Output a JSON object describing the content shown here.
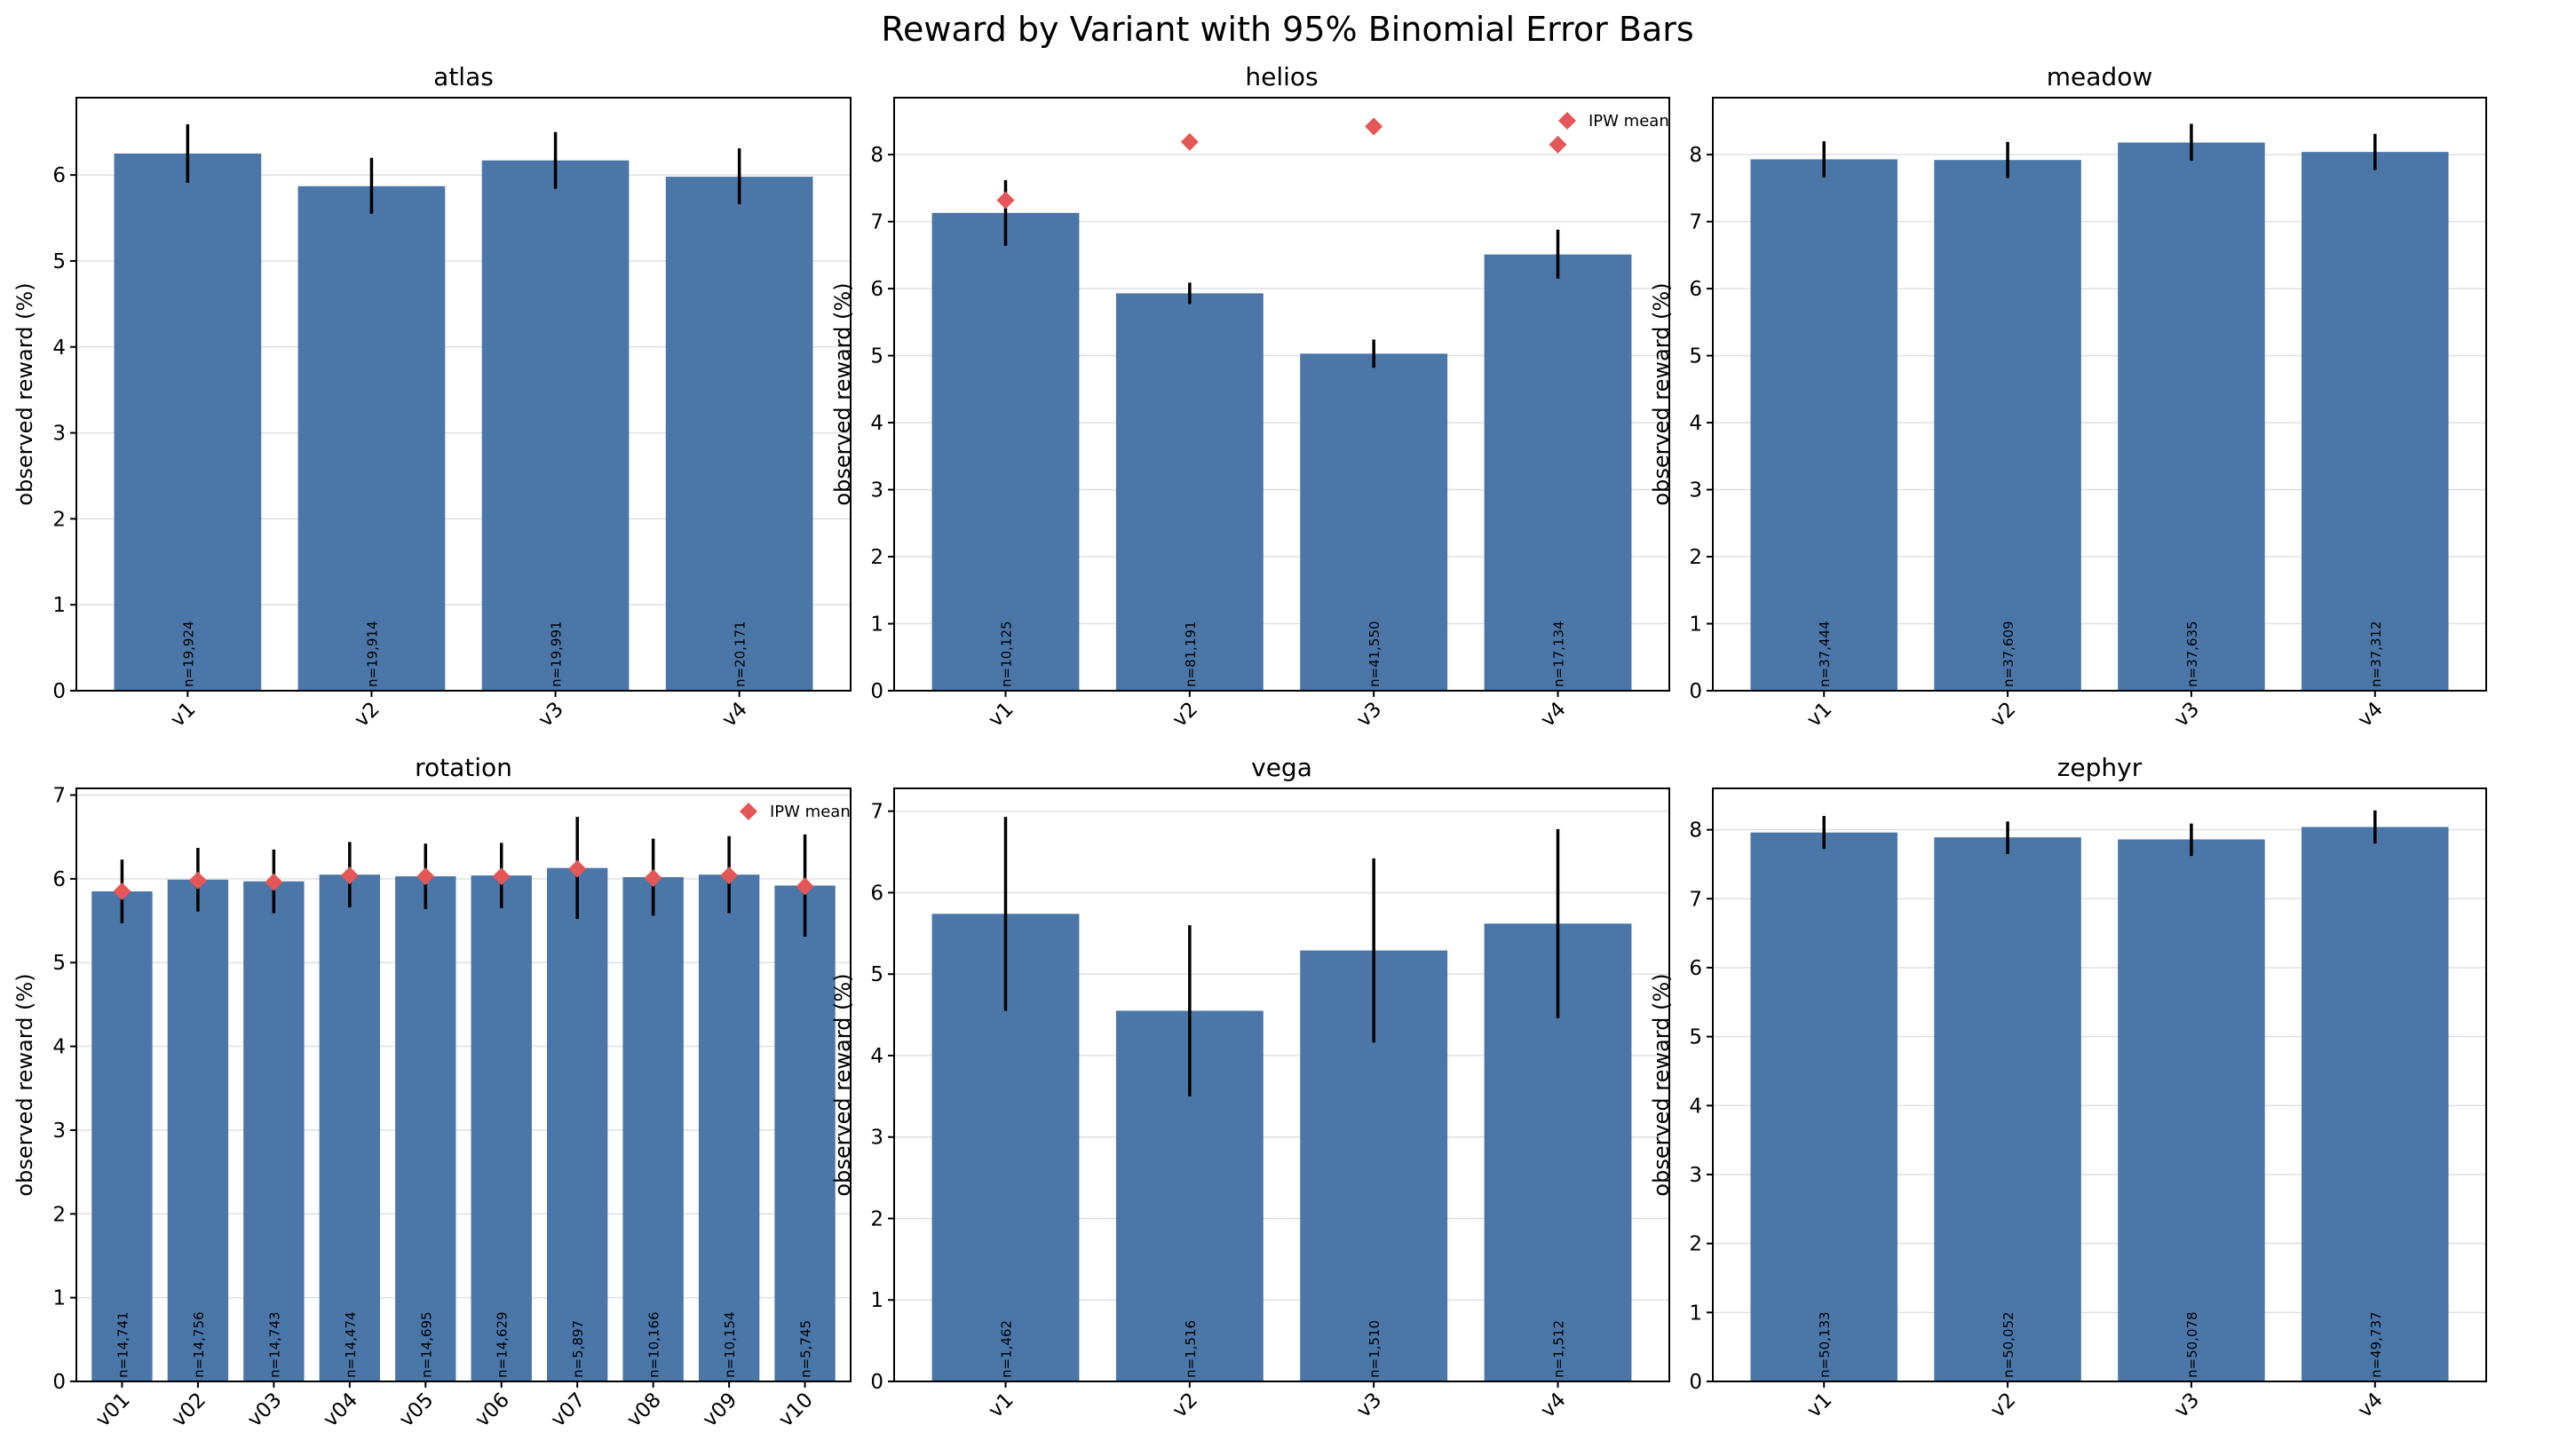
{
  "suptitle": "Reward by Variant with 95% Binomial Error Bars",
  "colors": {
    "bar": "#4a76a8",
    "ipw": "#e45756",
    "error_bar": "#000000"
  },
  "chart_data": [
    {
      "type": "bar",
      "title": "atlas",
      "ylabel": "observed reward (%)",
      "ylim": [
        0,
        6.9
      ],
      "yticks": [
        0,
        1,
        2,
        3,
        4,
        5,
        6
      ],
      "categories": [
        "v1",
        "v2",
        "v3",
        "v4"
      ],
      "values": [
        6.25,
        5.87,
        6.17,
        5.98
      ],
      "err_low": [
        5.91,
        5.55,
        5.84,
        5.66
      ],
      "err_high": [
        6.59,
        6.2,
        6.5,
        6.31
      ],
      "n_labels": [
        "n=19,924",
        "n=19,914",
        "n=19,991",
        "n=20,171"
      ],
      "ipw": null,
      "legend": null
    },
    {
      "type": "bar",
      "title": "helios",
      "ylabel": "observed reward (%)",
      "ylim": [
        0,
        8.85
      ],
      "yticks": [
        0,
        1,
        2,
        3,
        4,
        5,
        6,
        7,
        8
      ],
      "categories": [
        "v1",
        "v2",
        "v3",
        "v4"
      ],
      "values": [
        7.13,
        5.93,
        5.03,
        6.51
      ],
      "err_low": [
        6.64,
        5.77,
        4.82,
        6.15
      ],
      "err_high": [
        7.62,
        6.09,
        5.24,
        6.88
      ],
      "n_labels": [
        "n=10,125",
        "n=81,191",
        "n=41,550",
        "n=17,134"
      ],
      "ipw": [
        7.32,
        8.19,
        8.42,
        8.15
      ],
      "legend": "IPW mean"
    },
    {
      "type": "bar",
      "title": "meadow",
      "ylabel": "observed reward (%)",
      "ylim": [
        0,
        8.85
      ],
      "yticks": [
        0,
        1,
        2,
        3,
        4,
        5,
        6,
        7,
        8
      ],
      "categories": [
        "v1",
        "v2",
        "v3",
        "v4"
      ],
      "values": [
        7.93,
        7.92,
        8.18,
        8.04
      ],
      "err_low": [
        7.66,
        7.65,
        7.91,
        7.77
      ],
      "err_high": [
        8.2,
        8.19,
        8.46,
        8.31
      ],
      "n_labels": [
        "n=37,444",
        "n=37,609",
        "n=37,635",
        "n=37,312"
      ],
      "ipw": null,
      "legend": null
    },
    {
      "type": "bar",
      "title": "rotation",
      "ylabel": "observed reward (%)",
      "ylim": [
        0,
        7.08
      ],
      "yticks": [
        0,
        1,
        2,
        3,
        4,
        5,
        6,
        7
      ],
      "categories": [
        "v01",
        "v02",
        "v03",
        "v04",
        "v05",
        "v06",
        "v07",
        "v08",
        "v09",
        "v10"
      ],
      "values": [
        5.85,
        5.99,
        5.97,
        6.05,
        6.03,
        6.04,
        6.13,
        6.02,
        6.05,
        5.92
      ],
      "err_low": [
        5.47,
        5.61,
        5.59,
        5.66,
        5.64,
        5.65,
        5.52,
        5.56,
        5.59,
        5.31
      ],
      "err_high": [
        6.23,
        6.37,
        6.35,
        6.44,
        6.42,
        6.43,
        6.74,
        6.48,
        6.51,
        6.53
      ],
      "n_labels": [
        "n=14,741",
        "n=14,756",
        "n=14,743",
        "n=14,474",
        "n=14,695",
        "n=14,629",
        "n=5,897",
        "n=10,166",
        "n=10,154",
        "n=5,745"
      ],
      "ipw": [
        5.85,
        5.98,
        5.96,
        6.04,
        6.03,
        6.03,
        6.12,
        6.01,
        6.04,
        5.91
      ],
      "legend": "IPW mean"
    },
    {
      "type": "bar",
      "title": "vega",
      "ylabel": "observed reward (%)",
      "ylim": [
        0,
        7.28
      ],
      "yticks": [
        0,
        1,
        2,
        3,
        4,
        5,
        6,
        7
      ],
      "categories": [
        "v1",
        "v2",
        "v3",
        "v4"
      ],
      "values": [
        5.74,
        4.55,
        5.29,
        5.62
      ],
      "err_low": [
        4.55,
        3.5,
        4.16,
        4.46
      ],
      "err_high": [
        6.93,
        5.6,
        6.42,
        6.78
      ],
      "n_labels": [
        "n=1,462",
        "n=1,516",
        "n=1,510",
        "n=1,512"
      ],
      "ipw": null,
      "legend": null
    },
    {
      "type": "bar",
      "title": "zephyr",
      "ylabel": "observed reward (%)",
      "ylim": [
        0,
        8.6
      ],
      "yticks": [
        0,
        1,
        2,
        3,
        4,
        5,
        6,
        7,
        8
      ],
      "categories": [
        "v1",
        "v2",
        "v3",
        "v4"
      ],
      "values": [
        7.96,
        7.89,
        7.86,
        8.04
      ],
      "err_low": [
        7.72,
        7.65,
        7.62,
        7.8
      ],
      "err_high": [
        8.2,
        8.12,
        8.09,
        8.28
      ],
      "n_labels": [
        "n=50,133",
        "n=50,052",
        "n=50,078",
        "n=49,737"
      ],
      "ipw": null,
      "legend": null
    }
  ]
}
